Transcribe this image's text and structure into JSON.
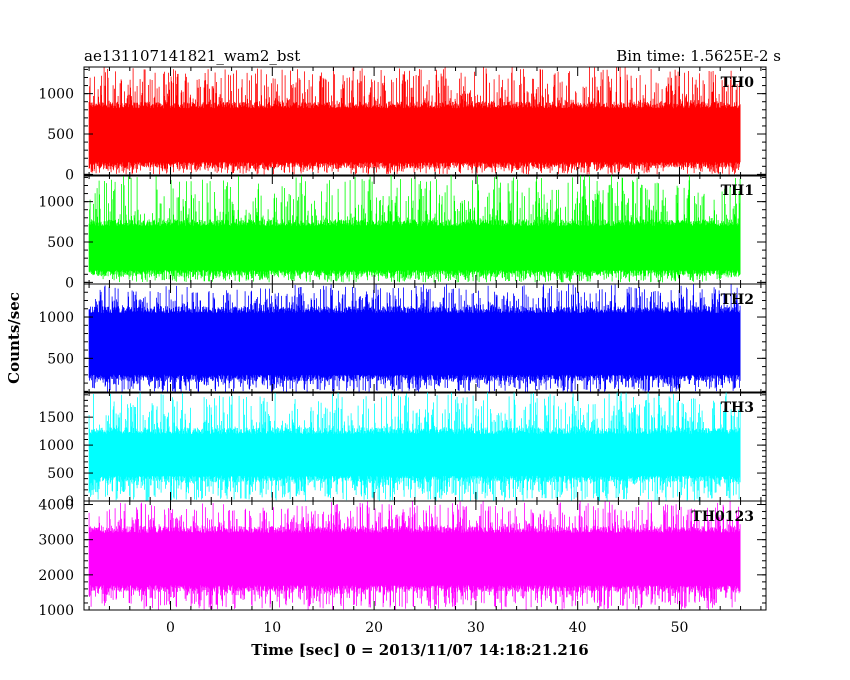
{
  "header": {
    "title": "ae131107141821_wam2_bst",
    "bin_time": "Bin time: 1.5625E-2 s"
  },
  "chart_data": {
    "type": "line",
    "xlabel": "Time [sec] 0 = 2013/11/07 14:18:21.216",
    "ylabel": "Counts/sec",
    "xlim": [
      -8.5,
      58.5
    ],
    "x_ticks": [
      0,
      10,
      20,
      30,
      40,
      50
    ],
    "x_data_range": [
      -8,
      56
    ],
    "panels": [
      {
        "name": "TH0",
        "color": "#ff0000",
        "ylim": [
          -20,
          1330
        ],
        "y_ticks": [
          0,
          500,
          1000
        ],
        "band_low": 150,
        "band_high": 820,
        "peak_min": 0,
        "peak_max": 1330
      },
      {
        "name": "TH1",
        "color": "#00ff00",
        "ylim": [
          -20,
          1330
        ],
        "y_ticks": [
          0,
          500,
          1000
        ],
        "band_low": 150,
        "band_high": 700,
        "peak_min": 0,
        "peak_max": 1330
      },
      {
        "name": "TH2",
        "color": "#0000ff",
        "ylim": [
          80,
          1400
        ],
        "y_ticks": [
          500,
          1000
        ],
        "band_low": 300,
        "band_high": 1050,
        "peak_min": 80,
        "peak_max": 1400
      },
      {
        "name": "TH3",
        "color": "#00ffff",
        "ylim": [
          0,
          1950
        ],
        "y_ticks": [
          0,
          500,
          1000,
          1500
        ],
        "band_low": 450,
        "band_high": 1200,
        "peak_min": 0,
        "peak_max": 1950
      },
      {
        "name": "TH0123",
        "color": "#ff00ff",
        "ylim": [
          1000,
          4100
        ],
        "y_ticks": [
          1000,
          2000,
          3000,
          4000
        ],
        "band_low": 1700,
        "band_high": 3200,
        "peak_min": 1000,
        "peak_max": 4100
      }
    ]
  }
}
